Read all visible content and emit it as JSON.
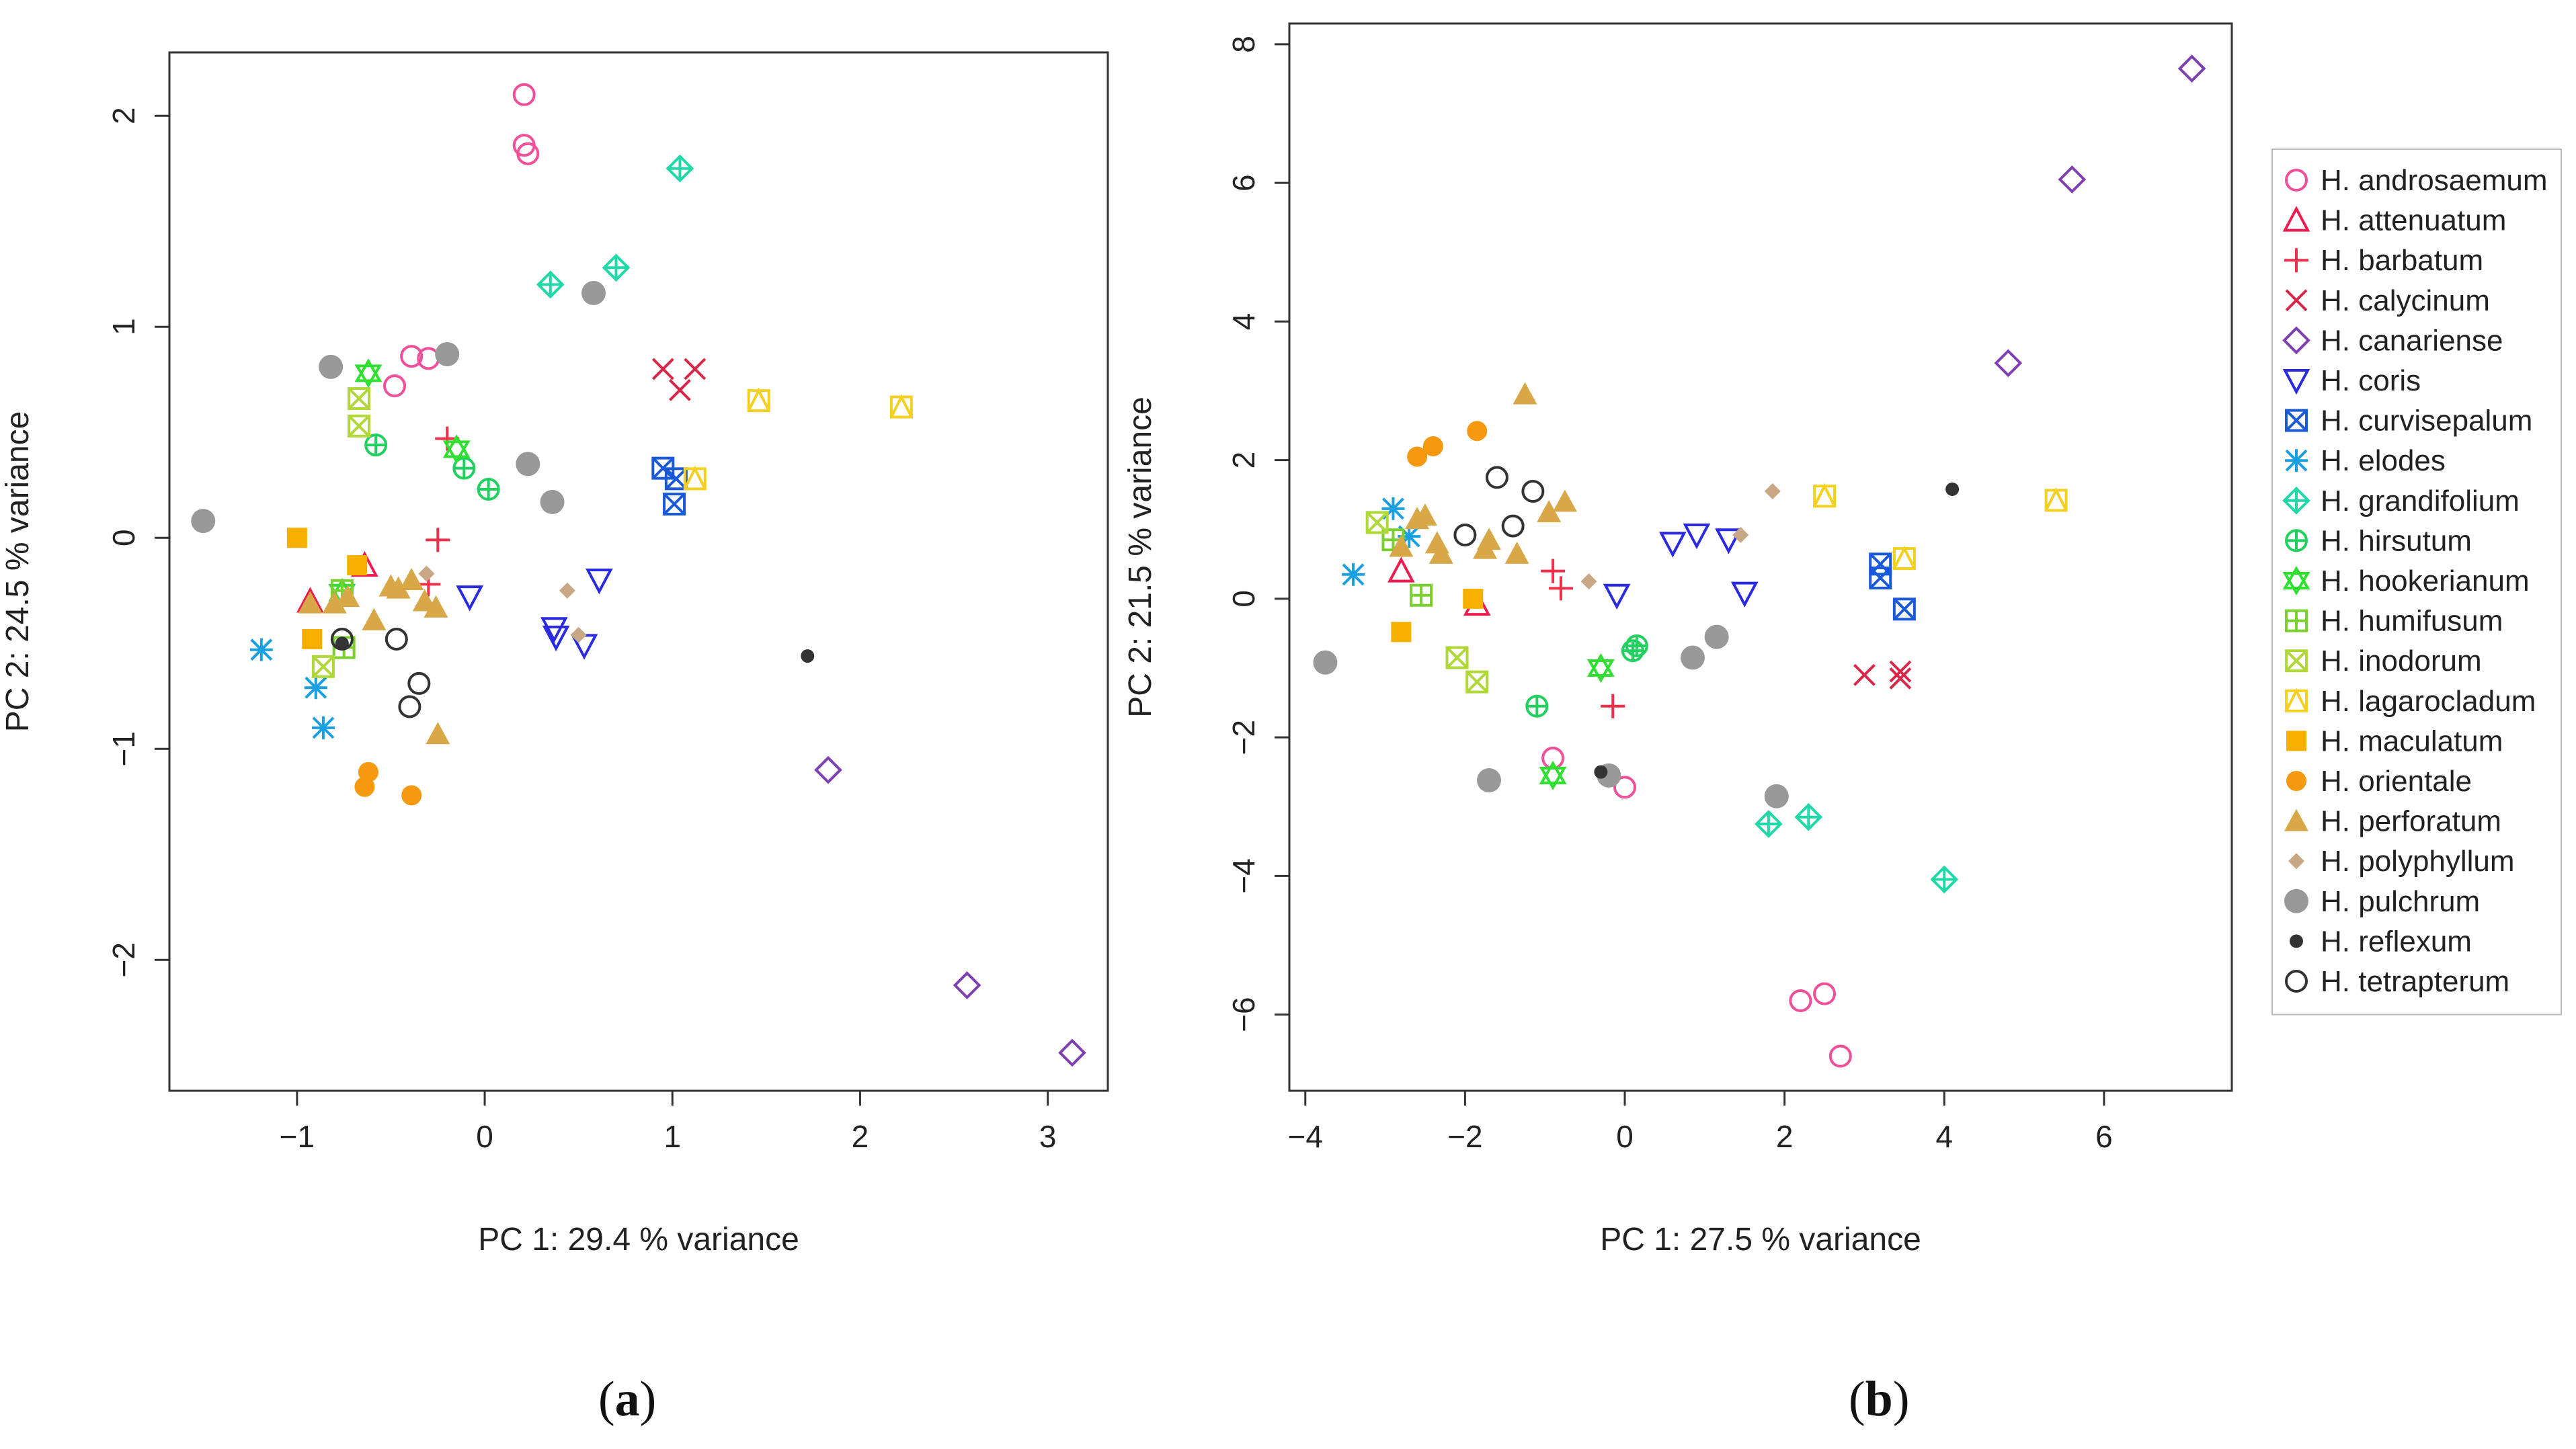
{
  "captions": {
    "a": {
      "open": "(",
      "letter": "a",
      "close": ")"
    },
    "b": {
      "open": "(",
      "letter": "b",
      "close": ")"
    }
  },
  "legend": {
    "items": [
      {
        "label": "H. androsaemum",
        "color": "#f0509a",
        "marker": "circle-open"
      },
      {
        "label": "H. attenuatum",
        "color": "#ec1c50",
        "marker": "triangle-open"
      },
      {
        "label": "H. barbatum",
        "color": "#f0304a",
        "marker": "plus"
      },
      {
        "label": "H. calycinum",
        "color": "#d8284a",
        "marker": "x"
      },
      {
        "label": "H. canariense",
        "color": "#7e3fb4",
        "marker": "diamond-open"
      },
      {
        "label": "H. coris",
        "color": "#2a2ae0",
        "marker": "triangle-down-open"
      },
      {
        "label": "H. curvisepalum",
        "color": "#1a5ad8",
        "marker": "square-x"
      },
      {
        "label": "H. elodes",
        "color": "#1aa0e0",
        "marker": "asterisk"
      },
      {
        "label": "H. grandifolium",
        "color": "#20d8a8",
        "marker": "diamond-plus"
      },
      {
        "label": "H. hirsutum",
        "color": "#22d060",
        "marker": "circle-plus"
      },
      {
        "label": "H. hookerianum",
        "color": "#30e030",
        "marker": "star-of-david"
      },
      {
        "label": "H. humifusum",
        "color": "#7ad030",
        "marker": "square-plus"
      },
      {
        "label": "H. inodorum",
        "color": "#b0d838",
        "marker": "square-x"
      },
      {
        "label": "H. lagarocladum",
        "color": "#f4d020",
        "marker": "square-lag"
      },
      {
        "label": "H. maculatum",
        "color": "#f8b000",
        "marker": "square-filled"
      },
      {
        "label": "H. orientale",
        "color": "#f59a10",
        "marker": "circle-filled"
      },
      {
        "label": "H. perforatum",
        "color": "#d8a848",
        "marker": "triangle-filled"
      },
      {
        "label": "H. polyphyllum",
        "color": "#c8a884",
        "marker": "diamond-filled"
      },
      {
        "label": "H. pulchrum",
        "color": "#999999",
        "marker": "circle-filled-big"
      },
      {
        "label": "H. reflexum",
        "color": "#333333",
        "marker": "circle-filled-small"
      },
      {
        "label": "H. tetrapterum",
        "color": "#333333",
        "marker": "circle-open"
      }
    ]
  },
  "chart_data": [
    {
      "type": "scatter",
      "panel": "a",
      "xlabel": "PC 1: 29.4 % variance",
      "ylabel": "PC 2: 24.5 % variance",
      "xlim": [
        -1.68,
        3.32
      ],
      "ylim": [
        -2.62,
        2.3
      ],
      "xticks": [
        -1,
        0,
        1,
        2,
        3
      ],
      "yticks": [
        -2,
        -1,
        0,
        1,
        2
      ],
      "xtick_labels": [
        "−1",
        "0",
        "1",
        "2",
        "3"
      ],
      "ytick_labels": [
        "−2",
        "−1",
        "0",
        "1",
        "2"
      ],
      "series": [
        {
          "name": "H. androsaemum",
          "points": [
            [
              0.21,
              2.1
            ],
            [
              0.21,
              1.86
            ],
            [
              0.23,
              1.82
            ],
            [
              -0.39,
              0.86
            ],
            [
              -0.3,
              0.85
            ],
            [
              -0.48,
              0.72
            ]
          ]
        },
        {
          "name": "H. attenuatum",
          "points": [
            [
              -0.64,
              -0.13
            ],
            [
              -0.93,
              -0.3
            ]
          ]
        },
        {
          "name": "H. barbatum",
          "points": [
            [
              -0.2,
              0.47
            ],
            [
              -0.25,
              -0.01
            ],
            [
              -0.3,
              -0.22
            ]
          ]
        },
        {
          "name": "H. calycinum",
          "points": [
            [
              0.95,
              0.8
            ],
            [
              1.12,
              0.8
            ],
            [
              1.04,
              0.7
            ]
          ]
        },
        {
          "name": "H. canariense",
          "points": [
            [
              1.83,
              -1.1
            ],
            [
              2.57,
              -2.12
            ],
            [
              3.13,
              -2.44
            ]
          ]
        },
        {
          "name": "H. coris",
          "points": [
            [
              -0.08,
              -0.28
            ],
            [
              0.37,
              -0.43
            ],
            [
              0.38,
              -0.47
            ],
            [
              0.53,
              -0.51
            ],
            [
              0.61,
              -0.2
            ]
          ]
        },
        {
          "name": "H. curvisepalum",
          "points": [
            [
              0.95,
              0.33
            ],
            [
              1.02,
              0.28
            ],
            [
              1.01,
              0.16
            ]
          ]
        },
        {
          "name": "H. elodes",
          "points": [
            [
              -1.19,
              -0.53
            ],
            [
              -0.9,
              -0.71
            ],
            [
              -0.86,
              -0.9
            ]
          ]
        },
        {
          "name": "H. grandifolium",
          "points": [
            [
              1.04,
              1.75
            ],
            [
              0.7,
              1.28
            ],
            [
              0.35,
              1.2
            ]
          ]
        },
        {
          "name": "H. hirsutum",
          "points": [
            [
              -0.58,
              0.44
            ],
            [
              0.02,
              0.23
            ],
            [
              -0.11,
              0.33
            ]
          ]
        },
        {
          "name": "H. hookerianum",
          "points": [
            [
              -0.62,
              0.78
            ],
            [
              -0.15,
              0.42
            ],
            [
              -0.76,
              -0.26
            ]
          ]
        },
        {
          "name": "H. humifusum",
          "points": [
            [
              -0.76,
              -0.25
            ],
            [
              -0.75,
              -0.52
            ]
          ]
        },
        {
          "name": "H. inodorum",
          "points": [
            [
              -0.67,
              0.66
            ],
            [
              -0.67,
              0.53
            ],
            [
              -0.86,
              -0.61
            ]
          ]
        },
        {
          "name": "H. lagarocladum",
          "points": [
            [
              1.46,
              0.65
            ],
            [
              2.22,
              0.62
            ],
            [
              1.12,
              0.28
            ]
          ]
        },
        {
          "name": "H. maculatum",
          "points": [
            [
              -1.0,
              0.0
            ],
            [
              -0.92,
              -0.48
            ],
            [
              -0.68,
              -0.13
            ]
          ]
        },
        {
          "name": "H. orientale",
          "points": [
            [
              -0.62,
              -1.11
            ],
            [
              -0.64,
              -1.18
            ],
            [
              -0.39,
              -1.22
            ]
          ]
        },
        {
          "name": "H. perforatum",
          "points": [
            [
              -0.93,
              -0.31
            ],
            [
              -0.8,
              -0.31
            ],
            [
              -0.73,
              -0.28
            ],
            [
              -0.59,
              -0.39
            ],
            [
              -0.5,
              -0.23
            ],
            [
              -0.46,
              -0.24
            ],
            [
              -0.39,
              -0.2
            ],
            [
              -0.32,
              -0.3
            ],
            [
              -0.26,
              -0.33
            ],
            [
              -0.25,
              -0.93
            ]
          ]
        },
        {
          "name": "H. polyphyllum",
          "points": [
            [
              -0.31,
              -0.17
            ],
            [
              0.44,
              -0.25
            ],
            [
              0.5,
              -0.46
            ]
          ]
        },
        {
          "name": "H. pulchrum",
          "points": [
            [
              -1.5,
              0.08
            ],
            [
              -0.82,
              0.81
            ],
            [
              -0.2,
              0.87
            ],
            [
              0.23,
              0.35
            ],
            [
              0.36,
              0.17
            ],
            [
              0.58,
              1.16
            ]
          ]
        },
        {
          "name": "H. reflexum",
          "points": [
            [
              1.72,
              -0.56
            ],
            [
              -0.76,
              -0.5
            ]
          ]
        },
        {
          "name": "H. tetrapterum",
          "points": [
            [
              -0.47,
              -0.48
            ],
            [
              -0.76,
              -0.48
            ],
            [
              -0.35,
              -0.69
            ],
            [
              -0.4,
              -0.8
            ]
          ]
        }
      ]
    },
    {
      "type": "scatter",
      "panel": "b",
      "xlabel": "PC 1: 27.5 % variance",
      "ylabel": "PC 2: 21.5 % variance",
      "xlim": [
        -4.2,
        7.6
      ],
      "ylim": [
        -7.1,
        8.3
      ],
      "xticks": [
        -4,
        -2,
        0,
        2,
        4,
        6
      ],
      "yticks": [
        -6,
        -4,
        -2,
        0,
        2,
        4,
        6,
        8
      ],
      "xtick_labels": [
        "−4",
        "−2",
        "0",
        "2",
        "4",
        "6"
      ],
      "ytick_labels": [
        "−6",
        "−4",
        "−2",
        "0",
        "2",
        "4",
        "6",
        "8"
      ],
      "series": [
        {
          "name": "H. androsaemum",
          "points": [
            [
              -0.9,
              -2.3
            ],
            [
              -0.2,
              -2.55
            ],
            [
              0.0,
              -2.72
            ],
            [
              2.2,
              -5.8
            ],
            [
              2.5,
              -5.7
            ],
            [
              2.7,
              -6.6
            ]
          ]
        },
        {
          "name": "H. attenuatum",
          "points": [
            [
              -2.8,
              0.4
            ],
            [
              -1.85,
              -0.08
            ]
          ]
        },
        {
          "name": "H. barbatum",
          "points": [
            [
              -0.9,
              0.4
            ],
            [
              -0.8,
              0.15
            ],
            [
              -0.15,
              -1.55
            ]
          ]
        },
        {
          "name": "H. calycinum",
          "points": [
            [
              3.0,
              -1.1
            ],
            [
              3.45,
              -1.05
            ],
            [
              3.45,
              -1.15
            ]
          ]
        },
        {
          "name": "H. canariense",
          "points": [
            [
              4.8,
              3.4
            ],
            [
              5.6,
              6.05
            ],
            [
              7.1,
              7.65
            ]
          ]
        },
        {
          "name": "H. coris",
          "points": [
            [
              -0.1,
              0.05
            ],
            [
              0.6,
              0.8
            ],
            [
              0.9,
              0.92
            ],
            [
              1.3,
              0.85
            ],
            [
              1.5,
              0.08
            ]
          ]
        },
        {
          "name": "H. curvisepalum",
          "points": [
            [
              3.2,
              0.5
            ],
            [
              3.2,
              0.3
            ],
            [
              3.5,
              -0.15
            ]
          ]
        },
        {
          "name": "H. elodes",
          "points": [
            [
              -3.4,
              0.35
            ],
            [
              -2.9,
              1.3
            ],
            [
              -2.7,
              0.9
            ]
          ]
        },
        {
          "name": "H. grandifolium",
          "points": [
            [
              1.8,
              -3.25
            ],
            [
              2.3,
              -3.15
            ],
            [
              4.0,
              -4.05
            ]
          ]
        },
        {
          "name": "H. hirsutum",
          "points": [
            [
              -1.1,
              -1.55
            ],
            [
              0.1,
              -0.75
            ],
            [
              0.15,
              -0.68
            ]
          ]
        },
        {
          "name": "H. hookerianum",
          "points": [
            [
              -0.9,
              -2.55
            ],
            [
              -0.3,
              -1.0
            ]
          ]
        },
        {
          "name": "H. humifusum",
          "points": [
            [
              -2.9,
              0.85
            ],
            [
              -2.55,
              0.05
            ]
          ]
        },
        {
          "name": "H. inodorum",
          "points": [
            [
              -3.1,
              1.1
            ],
            [
              -2.1,
              -0.85
            ],
            [
              -1.85,
              -1.2
            ]
          ]
        },
        {
          "name": "H. lagarocladum",
          "points": [
            [
              2.5,
              1.48
            ],
            [
              3.5,
              0.58
            ],
            [
              5.4,
              1.42
            ]
          ]
        },
        {
          "name": "H. maculatum",
          "points": [
            [
              -2.8,
              -0.48
            ],
            [
              -1.9,
              0.0
            ]
          ]
        },
        {
          "name": "H. orientale",
          "points": [
            [
              -2.6,
              2.05
            ],
            [
              -2.4,
              2.2
            ],
            [
              -1.85,
              2.42
            ]
          ]
        },
        {
          "name": "H. perforatum",
          "points": [
            [
              -2.8,
              0.75
            ],
            [
              -2.6,
              1.15
            ],
            [
              -2.5,
              1.2
            ],
            [
              -2.35,
              0.8
            ],
            [
              -2.3,
              0.65
            ],
            [
              -1.75,
              0.72
            ],
            [
              -1.7,
              0.85
            ],
            [
              -1.35,
              0.65
            ],
            [
              -1.25,
              2.95
            ],
            [
              -0.95,
              1.25
            ],
            [
              -0.75,
              1.4
            ]
          ]
        },
        {
          "name": "H. polyphyllum",
          "points": [
            [
              -0.45,
              0.25
            ],
            [
              1.45,
              0.92
            ],
            [
              1.85,
              1.55
            ]
          ]
        },
        {
          "name": "H. pulchrum",
          "points": [
            [
              -3.75,
              -0.92
            ],
            [
              -1.7,
              -2.62
            ],
            [
              -0.2,
              -2.55
            ],
            [
              0.85,
              -0.85
            ],
            [
              1.15,
              -0.55
            ],
            [
              1.9,
              -2.85
            ]
          ]
        },
        {
          "name": "H. reflexum",
          "points": [
            [
              4.1,
              1.58
            ],
            [
              -0.3,
              -2.5
            ]
          ]
        },
        {
          "name": "H. tetrapterum",
          "points": [
            [
              -1.6,
              1.75
            ],
            [
              -1.15,
              1.55
            ],
            [
              -1.4,
              1.05
            ],
            [
              -2.0,
              0.92
            ]
          ]
        }
      ]
    }
  ]
}
